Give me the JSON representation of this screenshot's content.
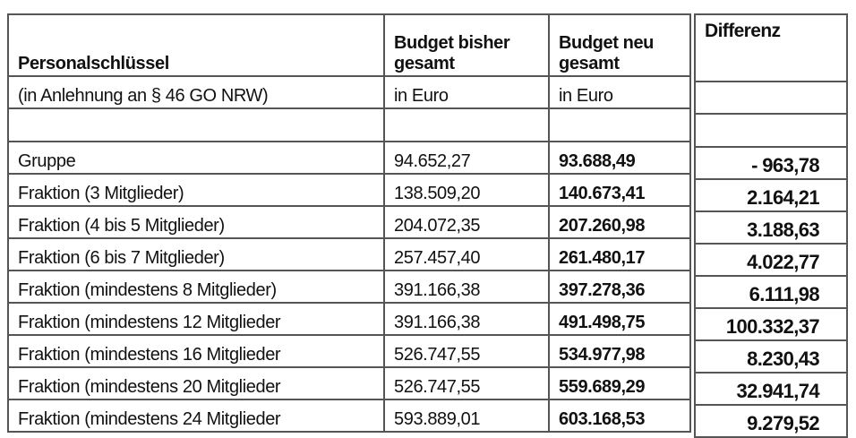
{
  "headers": {
    "col1": "Personalschlüssel",
    "col1_sub": "(in Anlehnung an § 46 GO NRW)",
    "col2_line1": "Budget bisher",
    "col2_line2": "gesamt",
    "col2_unit": "in Euro",
    "col3_line1": "Budget neu",
    "col3_line2": "gesamt",
    "col3_unit": "in Euro",
    "col4": "Differenz"
  },
  "rows": [
    {
      "label": "Gruppe",
      "bisher": "94.652,27",
      "neu": "93.688,49",
      "diff": "- 963,78"
    },
    {
      "label": "Fraktion (3 Mitglieder)",
      "bisher": "138.509,20",
      "neu": "140.673,41",
      "diff": "2.164,21"
    },
    {
      "label": "Fraktion (4 bis 5 Mitglieder)",
      "bisher": "204.072,35",
      "neu": "207.260,98",
      "diff": "3.188,63"
    },
    {
      "label": "Fraktion (6 bis 7 Mitglieder)",
      "bisher": "257.457,40",
      "neu": "261.480,17",
      "diff": "4.022,77"
    },
    {
      "label": "Fraktion (mindestens 8 Mitglieder)",
      "bisher": "391.166,38",
      "neu": "397.278,36",
      "diff": "6.111,98"
    },
    {
      "label": "Fraktion (mindestens 12 Mitglieder",
      "bisher": "391.166,38",
      "neu": "491.498,75",
      "diff": "100.332,37"
    },
    {
      "label": "Fraktion (mindestens 16 Mitglieder",
      "bisher": "526.747,55",
      "neu": "534.977,98",
      "diff": "8.230,43"
    },
    {
      "label": "Fraktion (mindestens 20 Mitglieder",
      "bisher": "526.747,55",
      "neu": "559.689,29",
      "diff": "32.941,74"
    },
    {
      "label": "Fraktion (mindestens 24 Mitglieder",
      "bisher": "593.889,01",
      "neu": "603.168,53",
      "diff": "9.279,52"
    }
  ]
}
